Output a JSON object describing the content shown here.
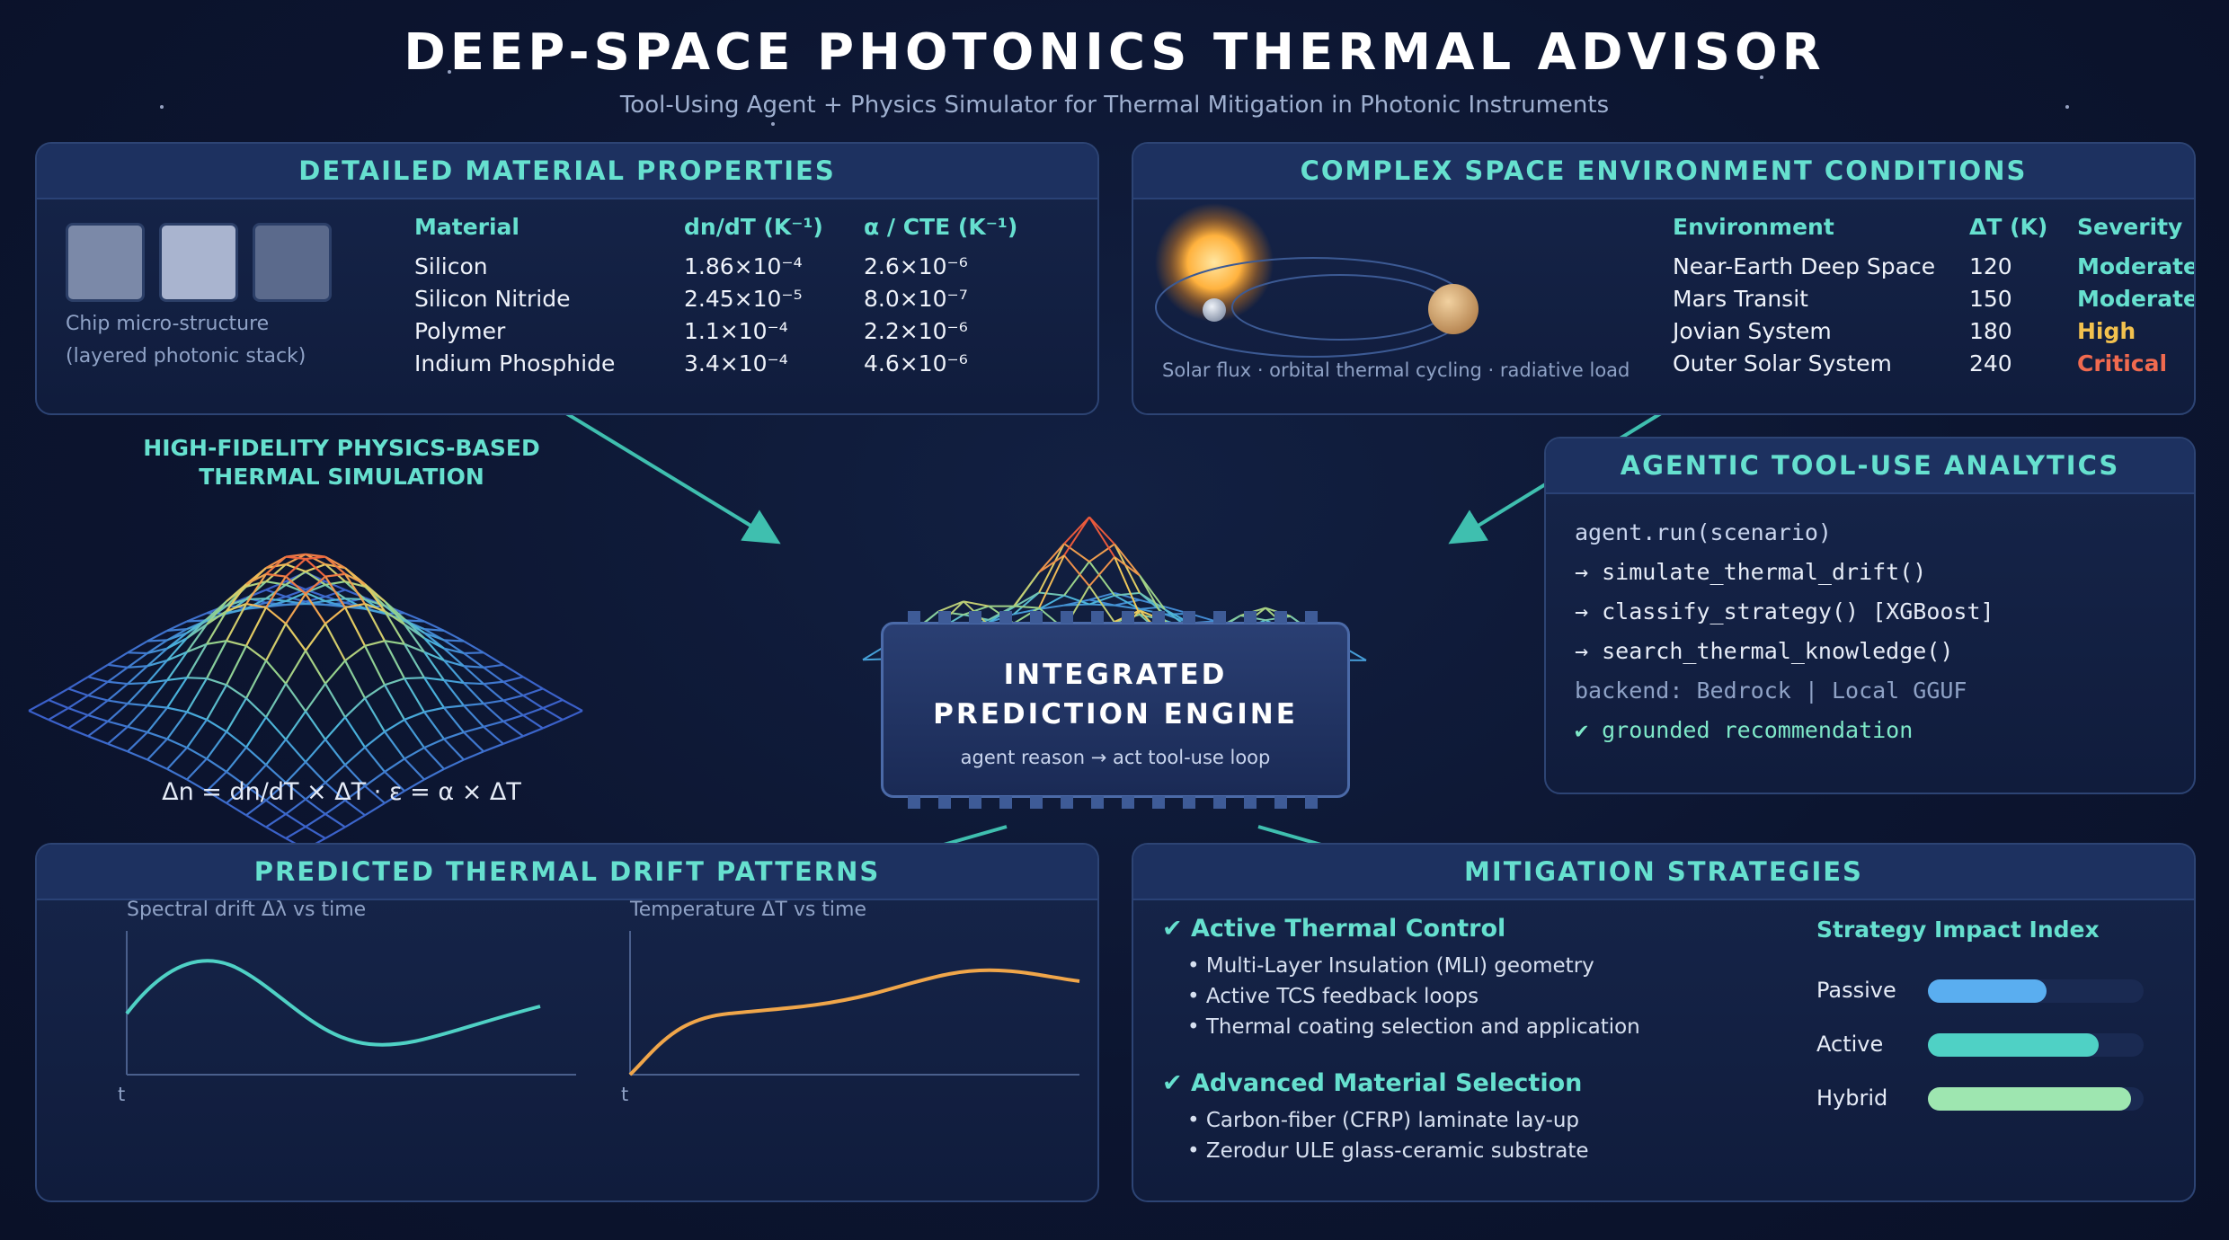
{
  "header": {
    "title": "DEEP-SPACE PHOTONICS THERMAL ADVISOR",
    "subtitle": "Tool-Using Agent + Physics Simulator for Thermal Mitigation in Photonic Instruments"
  },
  "materials": {
    "title": "DETAILED MATERIAL PROPERTIES",
    "chip_caption_1": "Chip micro-structure",
    "chip_caption_2": "(layered photonic stack)",
    "chip_colors": [
      "#7b89a8",
      "#a9b4cf",
      "#5b6a8c"
    ],
    "columns": [
      "Material",
      "dn/dT (K⁻¹)",
      "α / CTE (K⁻¹)"
    ],
    "rows": [
      [
        "Silicon",
        "1.86×10⁻⁴",
        "2.6×10⁻⁶"
      ],
      [
        "Silicon Nitride",
        "2.45×10⁻⁵",
        "8.0×10⁻⁷"
      ],
      [
        "Polymer",
        "1.1×10⁻⁴",
        "2.2×10⁻⁶"
      ],
      [
        "Indium Phosphide",
        "3.4×10⁻⁴",
        "4.6×10⁻⁶"
      ]
    ]
  },
  "environment": {
    "title": "COMPLEX SPACE ENVIRONMENT CONDITIONS",
    "caption": "Solar flux · orbital thermal cycling · radiative load",
    "columns": [
      "Environment",
      "ΔT (K)",
      "Severity"
    ],
    "rows": [
      {
        "env": "Near-Earth Deep Space",
        "dt": "120",
        "severity": "Moderate",
        "color": "#66e0cf"
      },
      {
        "env": "Mars Transit",
        "dt": "150",
        "severity": "Moderate",
        "color": "#66e0cf"
      },
      {
        "env": "Jovian System",
        "dt": "180",
        "severity": "High",
        "color": "#f2c14e"
      },
      {
        "env": "Outer Solar System",
        "dt": "240",
        "severity": "Critical",
        "color": "#f06a4f"
      }
    ]
  },
  "simulation": {
    "label_1": "HIGH-FIDELITY PHYSICS-BASED",
    "label_2": "THERMAL SIMULATION",
    "equation": "Δn = dn/dT × ΔT · ε = α × ΔT"
  },
  "engine": {
    "title_1": "INTEGRATED",
    "title_2": "PREDICTION ENGINE",
    "caption": "agent reason → act tool-use loop"
  },
  "analytics": {
    "title": "AGENTIC TOOL-USE ANALYTICS",
    "lines": [
      {
        "text": "agent.run(scenario)",
        "color": "#c9d5ee"
      },
      {
        "text": "→ simulate_thermal_drift()",
        "color": "#e6ecf7"
      },
      {
        "text": "→ classify_strategy() [XGBoost]",
        "color": "#e6ecf7"
      },
      {
        "text": "→ search_thermal_knowledge()",
        "color": "#e6ecf7"
      },
      {
        "text": "backend: Bedrock | Local GGUF",
        "color": "#8fa2c6"
      },
      {
        "text": "✔ grounded recommendation",
        "color": "#7ee8c8"
      }
    ]
  },
  "drift": {
    "title": "PREDICTED THERMAL DRIFT PATTERNS",
    "plot1_title": "Spectral drift Δλ vs time",
    "plot2_title": "Temperature ΔT vs time",
    "axis_label": "t"
  },
  "mitigation": {
    "title": "MITIGATION STRATEGIES",
    "groups": [
      {
        "heading": "✔ Active Thermal Control",
        "items": [
          "• Multi-Layer Insulation (MLI) geometry",
          "• Active TCS feedback loops",
          "• Thermal coating selection and application"
        ]
      },
      {
        "heading": "✔ Advanced Material Selection",
        "items": [
          "• Carbon-fiber (CFRP) laminate lay-up",
          "• Zerodur ULE glass-ceramic substrate"
        ]
      }
    ],
    "impact_title": "Strategy Impact Index",
    "impact": [
      {
        "label": "Passive",
        "value": 0.55,
        "color": "#5aaef0"
      },
      {
        "label": "Active",
        "value": 0.79,
        "color": "#4fd1c5"
      },
      {
        "label": "Hybrid",
        "value": 0.94,
        "color": "#9ee6b0"
      }
    ]
  }
}
